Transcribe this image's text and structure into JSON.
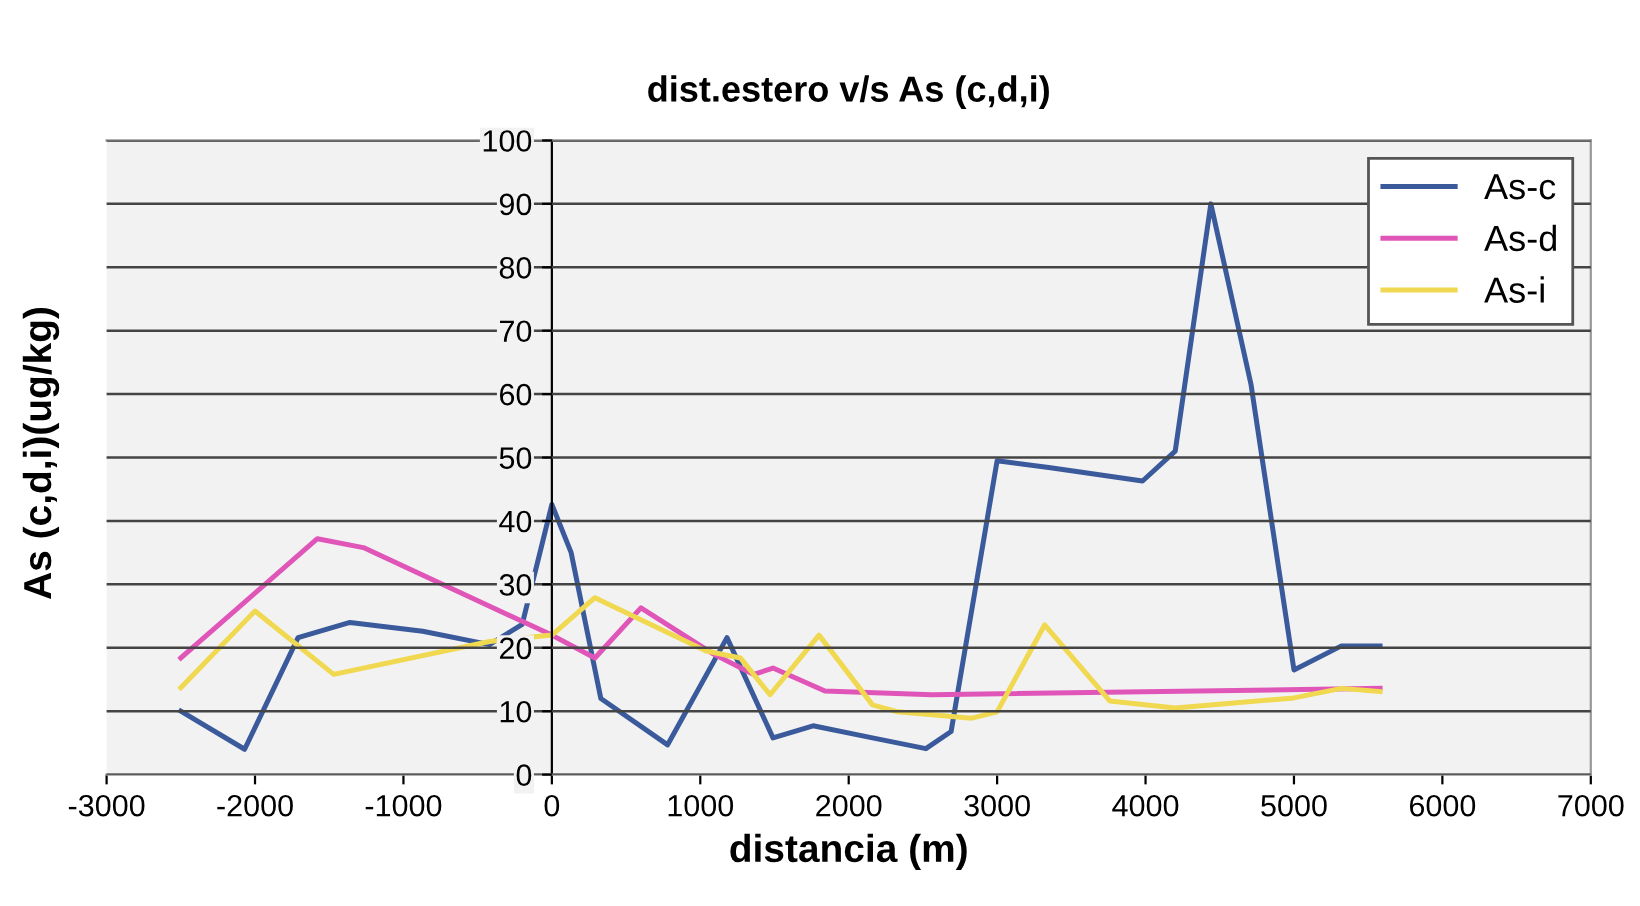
{
  "chart_data": {
    "type": "line",
    "title": "dist.estero v/s As (c,d,i)",
    "xlabel": "distancia (m)",
    "ylabel": "As (c,d,i)(ug/kg)",
    "xlim": [
      -3000,
      7000
    ],
    "xticks": [
      -3000,
      -2000,
      -1000,
      0,
      1000,
      2000,
      3000,
      4000,
      5000,
      6000,
      7000
    ],
    "ylim": [
      0,
      100
    ],
    "yticks": [
      0,
      10,
      20,
      30,
      40,
      50,
      60,
      70,
      80,
      90,
      100
    ],
    "grid": "y",
    "legend": "top right",
    "marker": "none",
    "line_style": "solid",
    "series": [
      {
        "name": "As-c",
        "color": "#3a5a9c",
        "x": [
          -2500,
          -2070,
          -1710,
          -1360,
          -870,
          -420,
          -200,
          0,
          130,
          330,
          780,
          1180,
          1490,
          1760,
          2160,
          2520,
          2690,
          3000,
          3360,
          3980,
          4200,
          4440,
          4710,
          5000,
          5320,
          5580
        ],
        "values": [
          10,
          4,
          21.6,
          24,
          22.6,
          20.5,
          23.7,
          42.6,
          35,
          12,
          4.7,
          21.6,
          5.8,
          7.7,
          5.8,
          4.1,
          6.8,
          49.5,
          48.4,
          46.3,
          51,
          90,
          61.6,
          16.5,
          20.3,
          20.3
        ]
      },
      {
        "name": "As-d",
        "color": "#e055b8",
        "x": [
          -2500,
          -1580,
          -1270,
          0,
          290,
          600,
          1090,
          1360,
          1490,
          1840,
          2560,
          5580
        ],
        "values": [
          18.4,
          37.2,
          35.8,
          22,
          18.4,
          26.3,
          19,
          15.8,
          16.8,
          13.2,
          12.6,
          13.6
        ]
      },
      {
        "name": "As-i",
        "color": "#f0d850",
        "x": [
          -2500,
          -2000,
          -1470,
          -420,
          0,
          290,
          1040,
          1270,
          1470,
          1800,
          2160,
          2330,
          2830,
          3000,
          3320,
          3760,
          4200,
          5000,
          5320,
          5580
        ],
        "values": [
          13.7,
          25.8,
          15.8,
          21,
          22,
          27.9,
          19.5,
          18.4,
          12.6,
          22,
          11,
          9.9,
          8.9,
          9.9,
          23.6,
          11.6,
          10.5,
          12.1,
          13.6,
          13.1
        ]
      }
    ]
  }
}
